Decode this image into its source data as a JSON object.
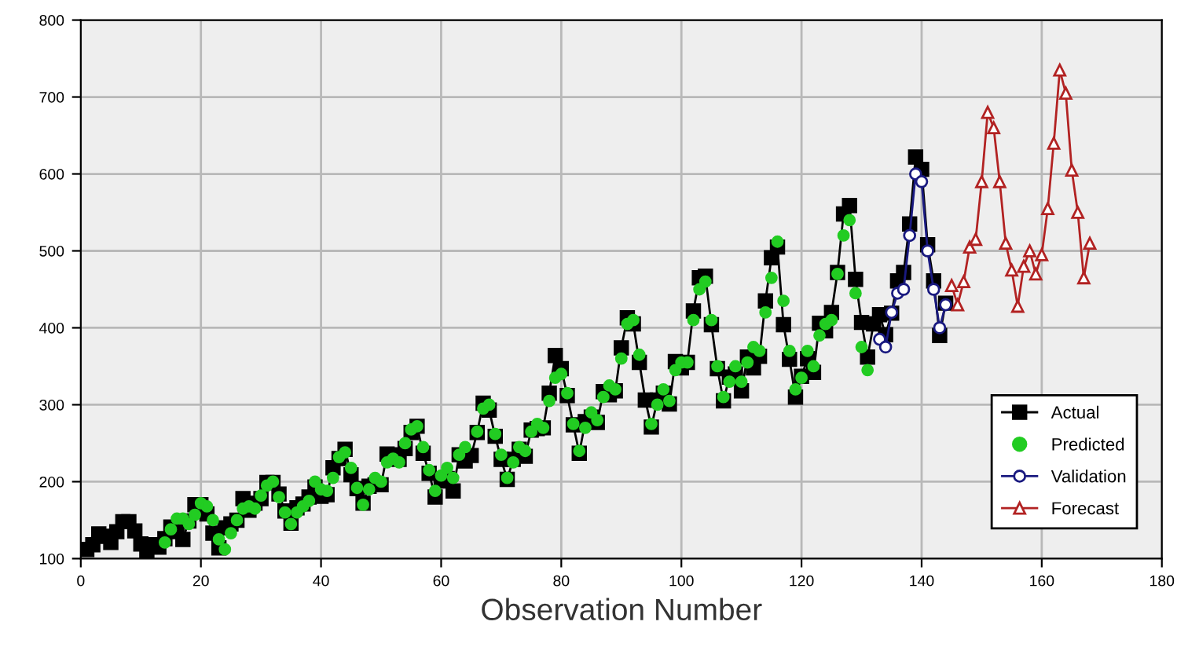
{
  "chart_data": {
    "type": "line",
    "xlabel": "Observation Number",
    "xlim": [
      0,
      180
    ],
    "xticks": [
      0,
      20,
      40,
      60,
      80,
      100,
      120,
      140,
      160,
      180
    ],
    "ylim": [
      100,
      800
    ],
    "yticks": [
      100,
      200,
      300,
      400,
      500,
      600,
      700,
      800
    ],
    "grid": true,
    "legend": "bottom right",
    "series": [
      {
        "name": "Actual",
        "color": "#000000",
        "marker": "square",
        "x": [
          1,
          2,
          3,
          4,
          5,
          6,
          7,
          8,
          9,
          10,
          11,
          12,
          13,
          14,
          15,
          16,
          17,
          18,
          19,
          20,
          21,
          22,
          23,
          24,
          25,
          26,
          27,
          28,
          29,
          30,
          31,
          32,
          33,
          34,
          35,
          36,
          37,
          38,
          39,
          40,
          41,
          42,
          43,
          44,
          45,
          46,
          47,
          48,
          49,
          50,
          51,
          52,
          53,
          54,
          55,
          56,
          57,
          58,
          59,
          60,
          61,
          62,
          63,
          64,
          65,
          66,
          67,
          68,
          69,
          70,
          71,
          72,
          73,
          74,
          75,
          76,
          77,
          78,
          79,
          80,
          81,
          82,
          83,
          84,
          85,
          86,
          87,
          88,
          89,
          90,
          91,
          92,
          93,
          94,
          95,
          96,
          97,
          98,
          99,
          100,
          101,
          102,
          103,
          104,
          105,
          106,
          107,
          108,
          109,
          110,
          111,
          112,
          113,
          114,
          115,
          116,
          117,
          118,
          119,
          120,
          121,
          122,
          123,
          124,
          125,
          126,
          127,
          128,
          129,
          130,
          131,
          132,
          133,
          134,
          135,
          136,
          137,
          138,
          139,
          140,
          141,
          142,
          143,
          144
        ],
        "values": [
          112,
          118,
          132,
          129,
          121,
          135,
          148,
          148,
          136,
          119,
          104,
          118,
          115,
          126,
          141,
          135,
          125,
          149,
          170,
          170,
          158,
          133,
          114,
          140,
          145,
          150,
          178,
          163,
          172,
          178,
          199,
          199,
          184,
          162,
          146,
          166,
          171,
          180,
          193,
          181,
          183,
          218,
          230,
          242,
          209,
          191,
          172,
          194,
          196,
          196,
          236,
          235,
          229,
          243,
          264,
          272,
          237,
          211,
          180,
          201,
          204,
          188,
          235,
          227,
          234,
          264,
          302,
          293,
          259,
          229,
          203,
          229,
          242,
          233,
          267,
          269,
          270,
          315,
          364,
          347,
          312,
          274,
          237,
          278,
          284,
          277,
          317,
          313,
          318,
          374,
          413,
          405,
          355,
          306,
          271,
          306,
          315,
          301,
          356,
          348,
          355,
          422,
          465,
          467,
          404,
          347,
          305,
          336,
          340,
          318,
          362,
          348,
          363,
          435,
          491,
          505,
          404,
          359,
          310,
          337,
          360,
          342,
          406,
          396,
          420,
          472,
          548,
          559,
          463,
          407,
          362,
          405,
          417,
          391,
          419,
          461,
          472,
          535,
          622,
          606,
          508,
          461,
          390,
          432
        ]
      },
      {
        "name": "Predicted",
        "type": "scatter",
        "color": "#22cc22",
        "marker": "circle",
        "x": [
          14,
          15,
          16,
          17,
          18,
          19,
          20,
          21,
          22,
          23,
          24,
          25,
          26,
          27,
          28,
          29,
          30,
          31,
          32,
          33,
          34,
          35,
          36,
          37,
          38,
          39,
          40,
          41,
          42,
          43,
          44,
          45,
          46,
          47,
          48,
          49,
          50,
          51,
          52,
          53,
          54,
          55,
          56,
          57,
          58,
          59,
          60,
          61,
          62,
          63,
          64,
          65,
          66,
          67,
          68,
          69,
          70,
          71,
          72,
          73,
          74,
          75,
          76,
          77,
          78,
          79,
          80,
          81,
          82,
          83,
          84,
          85,
          86,
          87,
          88,
          89,
          90,
          91,
          92,
          93,
          94,
          95,
          96,
          97,
          98,
          99,
          100,
          101,
          102,
          103,
          104,
          105,
          106,
          107,
          108,
          109,
          110,
          111,
          112,
          113,
          114,
          115,
          116,
          117,
          118,
          119,
          120,
          121,
          122,
          123,
          124,
          125,
          126,
          127,
          128,
          129,
          130,
          131
        ],
        "values": [
          121,
          138,
          152,
          152,
          145,
          157,
          172,
          168,
          150,
          125,
          112,
          133,
          150,
          165,
          168,
          165,
          182,
          195,
          200,
          180,
          160,
          145,
          160,
          168,
          175,
          200,
          190,
          188,
          205,
          232,
          238,
          218,
          192,
          170,
          190,
          205,
          200,
          225,
          230,
          225,
          250,
          268,
          272,
          245,
          215,
          188,
          208,
          218,
          205,
          235,
          245,
          null,
          265,
          295,
          300,
          262,
          235,
          205,
          225,
          245,
          240,
          265,
          275,
          270,
          305,
          335,
          340,
          315,
          275,
          240,
          270,
          290,
          280,
          310,
          325,
          320,
          360,
          405,
          410,
          365,
          null,
          275,
          300,
          320,
          305,
          345,
          355,
          355,
          410,
          450,
          460,
          410,
          350,
          310,
          330,
          350,
          330,
          355,
          375,
          370,
          420,
          465,
          512,
          435,
          370,
          320,
          335,
          370,
          350,
          390,
          405,
          410,
          470,
          520,
          540,
          445,
          375,
          345
        ]
      },
      {
        "name": "Validation",
        "color": "#1a1a80",
        "marker": "circle",
        "x": [
          133,
          134,
          135,
          136,
          137,
          138,
          139,
          140,
          141,
          142,
          143,
          144
        ],
        "values": [
          385,
          375,
          420,
          445,
          450,
          520,
          600,
          590,
          500,
          450,
          400,
          430
        ]
      },
      {
        "name": "Forecast",
        "color": "#b22222",
        "marker": "triangle",
        "x": [
          145,
          146,
          147,
          148,
          149,
          150,
          151,
          152,
          153,
          154,
          155,
          156,
          157,
          158,
          159,
          160,
          161,
          162,
          163,
          164,
          165,
          166,
          167,
          168
        ],
        "values": [
          455,
          430,
          460,
          505,
          515,
          590,
          680,
          660,
          590,
          510,
          475,
          428,
          480,
          500,
          470,
          495,
          555,
          640,
          735,
          705,
          605,
          550,
          465,
          510
        ]
      }
    ]
  }
}
